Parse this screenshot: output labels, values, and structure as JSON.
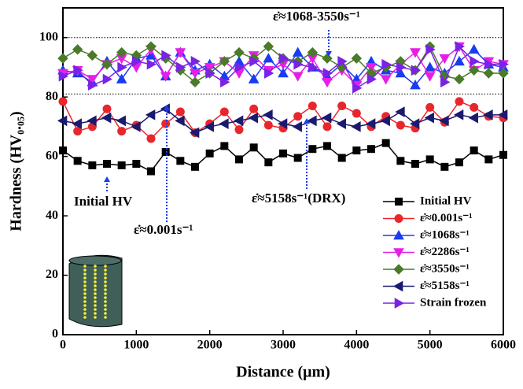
{
  "chart_data": {
    "type": "line",
    "x_label": "Distance (μm)",
    "y_label": "Hardness (HV₀.₀₅)",
    "x": [
      0,
      200,
      400,
      600,
      800,
      1000,
      1200,
      1400,
      1600,
      1800,
      2000,
      2200,
      2400,
      2600,
      2800,
      3000,
      3200,
      3400,
      3600,
      3800,
      4000,
      4200,
      4400,
      4600,
      4800,
      5000,
      5200,
      5400,
      5600,
      5800,
      6000
    ],
    "xlim": [
      0,
      6000
    ],
    "xticks": [
      0,
      1000,
      2000,
      3000,
      4000,
      5000,
      6000
    ],
    "ylim": [
      0,
      110
    ],
    "yticks": [
      0,
      20,
      40,
      60,
      80,
      100
    ],
    "reference_lines": [
      100,
      81
    ],
    "series": [
      {
        "name": "Initial HV",
        "color": "#000000",
        "marker": "square",
        "values": [
          62,
          58.5,
          57,
          57.5,
          57,
          57.5,
          55,
          61.5,
          58.5,
          56.5,
          61,
          63.5,
          59,
          63,
          58,
          61,
          59.5,
          62.5,
          63.5,
          59.5,
          62,
          62.5,
          64.5,
          58.5,
          57.5,
          59,
          56.5,
          58,
          62,
          59,
          60.5
        ]
      },
      {
        "name": "ε̇≈0.001s⁻¹",
        "color": "#e8262b",
        "marker": "circle",
        "values": [
          78.5,
          68.5,
          70,
          76,
          68.5,
          70.5,
          66,
          71,
          75,
          68,
          71,
          75,
          69,
          76,
          70.5,
          69.5,
          73.5,
          77,
          70,
          77,
          74.5,
          70,
          73.5,
          70.5,
          69.5,
          76.5,
          71.5,
          78.5,
          76.5,
          73.5,
          73
        ]
      },
      {
        "name": "ε̇≈1068s⁻¹",
        "color": "#1a3cf0",
        "marker": "up",
        "values": [
          89,
          88,
          85,
          92,
          86,
          93,
          94,
          87,
          95,
          89,
          91,
          87,
          92,
          86,
          93,
          88,
          95,
          90,
          87,
          91,
          86,
          92,
          89,
          88,
          84,
          90,
          88,
          92,
          96,
          91,
          90
        ]
      },
      {
        "name": "ε̇≈2286s⁻¹",
        "color": "#e61ee6",
        "marker": "down",
        "values": [
          88,
          89,
          86,
          91,
          93,
          90,
          96,
          87,
          95,
          88,
          90,
          92,
          88,
          94,
          89,
          91,
          87,
          93,
          85,
          89,
          84,
          90,
          86,
          91,
          95,
          87,
          93,
          97,
          89,
          92,
          91
        ]
      },
      {
        "name": "ε̇≈3550s⁻¹",
        "color": "#4a7a2a",
        "marker": "diamond",
        "values": [
          93,
          96,
          94,
          91,
          95,
          94,
          97,
          93,
          89,
          85,
          88,
          92,
          95,
          93,
          97,
          93,
          92,
          95,
          93,
          90,
          93,
          88,
          90,
          92,
          89,
          97,
          87,
          86,
          89,
          88,
          88
        ]
      },
      {
        "name": "ε̇≈5158s⁻¹",
        "color": "#1a1a6e",
        "marker": "left",
        "values": [
          72,
          71,
          72,
          73,
          72,
          70,
          74,
          76,
          72,
          68,
          70,
          71,
          72,
          73,
          74,
          71,
          70,
          72,
          73,
          71,
          70,
          71,
          72,
          75,
          71,
          73,
          72,
          74,
          73,
          74,
          74
        ]
      },
      {
        "name": "Strain frozen",
        "color": "#7a22e6",
        "marker": "right",
        "values": [
          87,
          89,
          84,
          86,
          90,
          92,
          91,
          94,
          90,
          92,
          88,
          85,
          90,
          92,
          88,
          93,
          91,
          90,
          88,
          92,
          83,
          86,
          91,
          90,
          89,
          96,
          85,
          97,
          92,
          91,
          91
        ]
      }
    ],
    "annotations": [
      "ε̇≈1068-3550s⁻¹",
      "ε̇≈5158s⁻¹(DRX)",
      "Initial HV",
      "ε̇≈0.001s⁻¹"
    ]
  }
}
